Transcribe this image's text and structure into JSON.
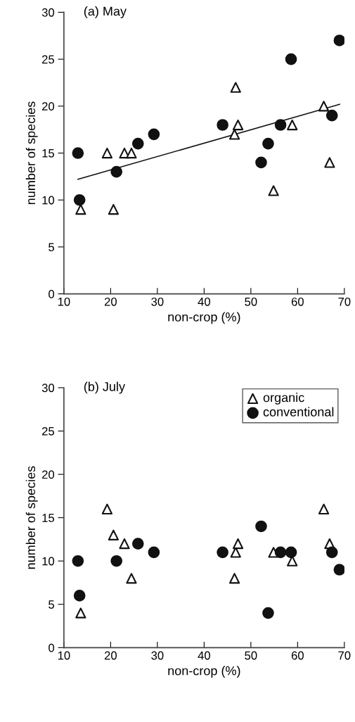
{
  "chart_data": [
    {
      "type": "scatter",
      "title": "(a) May",
      "xlabel": "non-crop (%)",
      "ylabel": "number of species",
      "xlim": [
        10,
        70
      ],
      "ylim": [
        0,
        30
      ],
      "xticks": [
        10,
        20,
        30,
        40,
        50,
        60,
        70
      ],
      "yticks": [
        0,
        5,
        10,
        15,
        20,
        25,
        30
      ],
      "grid": false,
      "legend": false,
      "series": [
        {
          "color": "#ffffff",
          "marker": "triangle",
          "x": [
            13.6,
            19.25,
            20.6,
            22.95,
            24.45,
            46.5,
            46.75,
            47.25,
            54.85,
            58.85,
            65.6,
            66.85
          ],
          "values": [
            9,
            15,
            9,
            15,
            15,
            17,
            22,
            18,
            11,
            18,
            20,
            14
          ]
        },
        {
          "color": "#111111",
          "marker": "circle",
          "x": [
            13,
            13.35,
            21.25,
            25.85,
            29.25,
            43.95,
            52.2,
            53.7,
            56.35,
            58.6,
            67.35,
            68.95
          ],
          "values": [
            15,
            10,
            13,
            16,
            17,
            18,
            14,
            16,
            18,
            25,
            19,
            27
          ]
        },
        {
          "type": "line",
          "color": "#111111",
          "marker": "none",
          "x": [
            13,
            69
          ],
          "values": [
            12.2,
            20.2
          ]
        }
      ]
    },
    {
      "type": "scatter",
      "title": "(b) July",
      "xlabel": "non-crop (%)",
      "ylabel": "number of species",
      "xlim": [
        10,
        70
      ],
      "ylim": [
        0,
        30
      ],
      "xticks": [
        10,
        20,
        30,
        40,
        50,
        60,
        70
      ],
      "yticks": [
        0,
        5,
        10,
        15,
        20,
        25,
        30
      ],
      "grid": false,
      "legend": "top right",
      "series": [
        {
          "name": "organic",
          "color": "#ffffff",
          "marker": "triangle",
          "x": [
            13.6,
            19.25,
            20.6,
            22.95,
            24.45,
            46.5,
            46.75,
            47.25,
            54.85,
            58.85,
            65.6,
            66.85
          ],
          "values": [
            4,
            16,
            13,
            12,
            8,
            8,
            11,
            12,
            11,
            10,
            16,
            12
          ]
        },
        {
          "name": "conventional",
          "color": "#111111",
          "marker": "circle",
          "x": [
            13,
            13.35,
            21.25,
            25.85,
            29.25,
            43.95,
            52.2,
            53.7,
            56.35,
            58.6,
            67.35,
            68.95
          ],
          "values": [
            10,
            6,
            10,
            12,
            11,
            11,
            14,
            4,
            11,
            11,
            11,
            9
          ]
        }
      ]
    }
  ]
}
